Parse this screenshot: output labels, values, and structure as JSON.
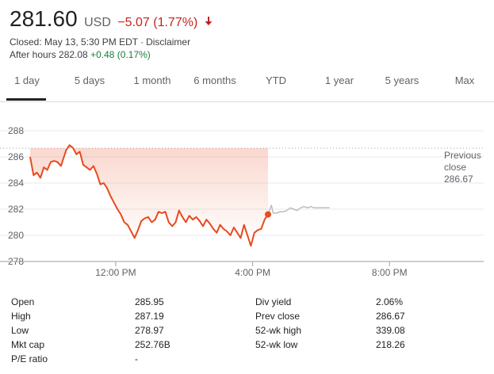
{
  "quote": {
    "price": "281.60",
    "currency": "USD",
    "change": "−5.07 (1.77%)",
    "closed_text": "Closed: May 13, 5:30 PM EDT",
    "separator": "·",
    "disclaimer": "Disclaimer",
    "after_hours_label": "After hours 282.08",
    "after_hours_change": "+0.48 (0.17%)"
  },
  "tabs": [
    {
      "label": "1 day",
      "active": true
    },
    {
      "label": "5 days",
      "active": false
    },
    {
      "label": "1 month",
      "active": false
    },
    {
      "label": "6 months",
      "active": false
    },
    {
      "label": "YTD",
      "active": false
    },
    {
      "label": "1 year",
      "active": false
    },
    {
      "label": "5 years",
      "active": false
    },
    {
      "label": "Max",
      "active": false
    }
  ],
  "chart_data": {
    "type": "line",
    "ylim": [
      278,
      288
    ],
    "yticks": [
      "278",
      "280",
      "282",
      "284",
      "286",
      "288"
    ],
    "xticks": [
      "12:00 PM",
      "4:00 PM",
      "8:00 PM"
    ],
    "xtick_hours": [
      12,
      16,
      20
    ],
    "xlim_hours": [
      9.5,
      22.75
    ],
    "previous_close": 286.67,
    "previous_close_label": [
      "Previous",
      "close",
      "286.67"
    ],
    "series": [
      {
        "values": [
          [
            9.5,
            286.0
          ],
          [
            9.6,
            284.6
          ],
          [
            9.7,
            284.8
          ],
          [
            9.8,
            284.4
          ],
          [
            9.9,
            285.2
          ],
          [
            10.0,
            285.0
          ],
          [
            10.1,
            285.6
          ],
          [
            10.2,
            285.7
          ],
          [
            10.3,
            285.6
          ],
          [
            10.4,
            285.3
          ],
          [
            10.45,
            285.7
          ],
          [
            10.55,
            286.5
          ],
          [
            10.65,
            286.9
          ],
          [
            10.75,
            286.7
          ],
          [
            10.85,
            286.2
          ],
          [
            10.95,
            286.4
          ],
          [
            11.05,
            285.4
          ],
          [
            11.15,
            285.2
          ],
          [
            11.25,
            285.0
          ],
          [
            11.35,
            285.3
          ],
          [
            11.45,
            284.7
          ],
          [
            11.55,
            283.9
          ],
          [
            11.65,
            284.0
          ],
          [
            11.75,
            283.6
          ],
          [
            11.85,
            283.0
          ],
          [
            11.95,
            282.5
          ],
          [
            12.05,
            282.0
          ],
          [
            12.15,
            281.6
          ],
          [
            12.25,
            281.0
          ],
          [
            12.35,
            280.8
          ],
          [
            12.45,
            280.3
          ],
          [
            12.55,
            279.8
          ],
          [
            12.65,
            280.4
          ],
          [
            12.75,
            281.1
          ],
          [
            12.85,
            281.3
          ],
          [
            12.95,
            281.4
          ],
          [
            13.05,
            281.0
          ],
          [
            13.15,
            281.2
          ],
          [
            13.25,
            281.8
          ],
          [
            13.35,
            281.7
          ],
          [
            13.45,
            281.8
          ],
          [
            13.55,
            281.0
          ],
          [
            13.65,
            280.7
          ],
          [
            13.75,
            281.0
          ],
          [
            13.85,
            281.9
          ],
          [
            13.95,
            281.4
          ],
          [
            14.05,
            281.0
          ],
          [
            14.15,
            281.5
          ],
          [
            14.25,
            281.2
          ],
          [
            14.35,
            281.4
          ],
          [
            14.45,
            281.1
          ],
          [
            14.55,
            280.7
          ],
          [
            14.65,
            281.2
          ],
          [
            14.75,
            280.9
          ],
          [
            14.85,
            280.5
          ],
          [
            14.95,
            280.2
          ],
          [
            15.05,
            280.8
          ],
          [
            15.15,
            280.5
          ],
          [
            15.25,
            280.3
          ],
          [
            15.35,
            280.0
          ],
          [
            15.45,
            280.6
          ],
          [
            15.55,
            280.2
          ],
          [
            15.65,
            279.8
          ],
          [
            15.75,
            280.8
          ],
          [
            15.85,
            280.0
          ],
          [
            15.95,
            279.2
          ],
          [
            16.05,
            280.2
          ],
          [
            16.15,
            280.4
          ],
          [
            16.25,
            280.5
          ],
          [
            16.35,
            281.2
          ],
          [
            16.45,
            281.6
          ]
        ],
        "color": "#e8491d"
      },
      {
        "values": [
          [
            16.45,
            281.6
          ],
          [
            16.55,
            282.3
          ],
          [
            16.6,
            281.7
          ],
          [
            16.7,
            281.7
          ],
          [
            16.8,
            281.8
          ],
          [
            16.9,
            281.8
          ],
          [
            17.0,
            281.9
          ],
          [
            17.1,
            282.1
          ],
          [
            17.2,
            282.0
          ],
          [
            17.3,
            281.9
          ],
          [
            17.4,
            282.1
          ],
          [
            17.5,
            282.2
          ],
          [
            17.6,
            282.1
          ],
          [
            17.7,
            282.2
          ],
          [
            17.8,
            282.1
          ],
          [
            17.9,
            282.1
          ],
          [
            18.0,
            282.1
          ],
          [
            18.1,
            282.1
          ],
          [
            18.25,
            282.1
          ]
        ],
        "color": "#bdbdbd"
      }
    ],
    "last_point": [
      16.45,
      281.6
    ]
  },
  "stats": {
    "left": [
      {
        "label": "Open",
        "value": "285.95"
      },
      {
        "label": "High",
        "value": "287.19"
      },
      {
        "label": "Low",
        "value": "278.97"
      },
      {
        "label": "Mkt cap",
        "value": "252.76B"
      },
      {
        "label": "P/E ratio",
        "value": "-"
      }
    ],
    "right": [
      {
        "label": "Div yield",
        "value": "2.06%"
      },
      {
        "label": "Prev close",
        "value": "286.67"
      },
      {
        "label": "52-wk high",
        "value": "339.08"
      },
      {
        "label": "52-wk low",
        "value": "218.26"
      }
    ]
  },
  "colors": {
    "line": "#e8491d",
    "after_hours": "#bdbdbd",
    "down": "#c5221f",
    "up": "#188038"
  }
}
